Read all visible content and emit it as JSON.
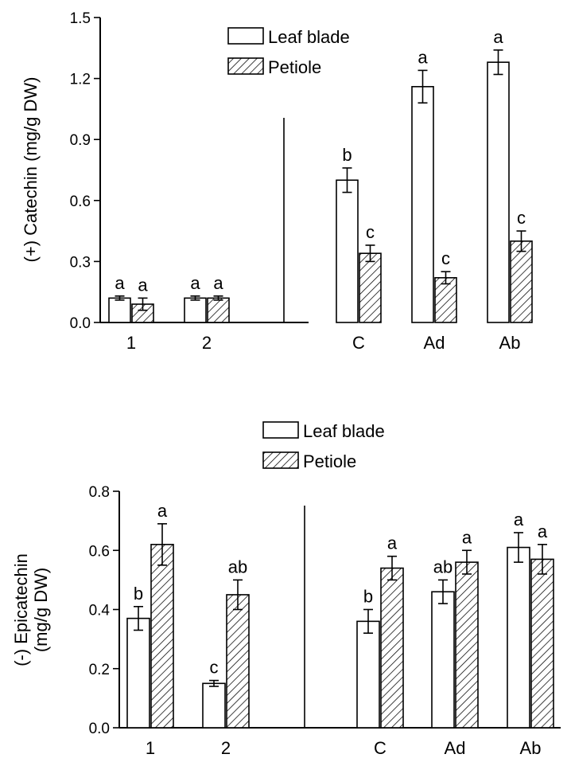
{
  "colors": {
    "axis": "#000000",
    "leaf_fill": "#ffffff",
    "hatch": "#000000"
  },
  "chart_data": [
    {
      "type": "bar",
      "ylabel": "(+) Catechin (mg/g DW)",
      "ylim": [
        0,
        1.5
      ],
      "yticks": [
        "0.0",
        "0.3",
        "0.6",
        "0.9",
        "1.2",
        "1.5"
      ],
      "categories": [
        "1",
        "2",
        "C",
        "Ad",
        "Ab"
      ],
      "legend": [
        "Leaf blade",
        "Petiole"
      ],
      "legend_position": "top-center",
      "series": [
        {
          "name": "Leaf blade",
          "pattern": "open",
          "values": [
            0.12,
            0.12,
            0.7,
            1.16,
            1.28
          ],
          "errors": [
            0.01,
            0.01,
            0.06,
            0.08,
            0.06
          ],
          "labels": [
            "a",
            "a",
            "b",
            "a",
            "a"
          ]
        },
        {
          "name": "Petiole",
          "pattern": "hatched",
          "values": [
            0.09,
            0.12,
            0.34,
            0.22,
            0.4
          ],
          "errors": [
            0.03,
            0.01,
            0.04,
            0.03,
            0.05
          ],
          "labels": [
            "a",
            "a",
            "c",
            "c",
            "c"
          ]
        }
      ]
    },
    {
      "type": "bar",
      "ylabel": [
        "(-) Epicatechin",
        "(mg/g DW)"
      ],
      "ylim": [
        0,
        0.8
      ],
      "yticks": [
        "0.0",
        "0.2",
        "0.4",
        "0.6",
        "0.8"
      ],
      "categories": [
        "1",
        "2",
        "C",
        "Ad",
        "Ab"
      ],
      "legend": [
        "Leaf blade",
        "Petiole"
      ],
      "legend_position": "top-center",
      "series": [
        {
          "name": "Leaf blade",
          "pattern": "open",
          "values": [
            0.37,
            0.15,
            0.36,
            0.46,
            0.61
          ],
          "errors": [
            0.04,
            0.01,
            0.04,
            0.04,
            0.05
          ],
          "labels": [
            "b",
            "c",
            "b",
            "ab",
            "a"
          ]
        },
        {
          "name": "Petiole",
          "pattern": "hatched",
          "values": [
            0.62,
            0.45,
            0.54,
            0.56,
            0.57
          ],
          "errors": [
            0.07,
            0.05,
            0.04,
            0.04,
            0.05
          ],
          "labels": [
            "a",
            "ab",
            "a",
            "a",
            "a"
          ]
        }
      ]
    }
  ]
}
